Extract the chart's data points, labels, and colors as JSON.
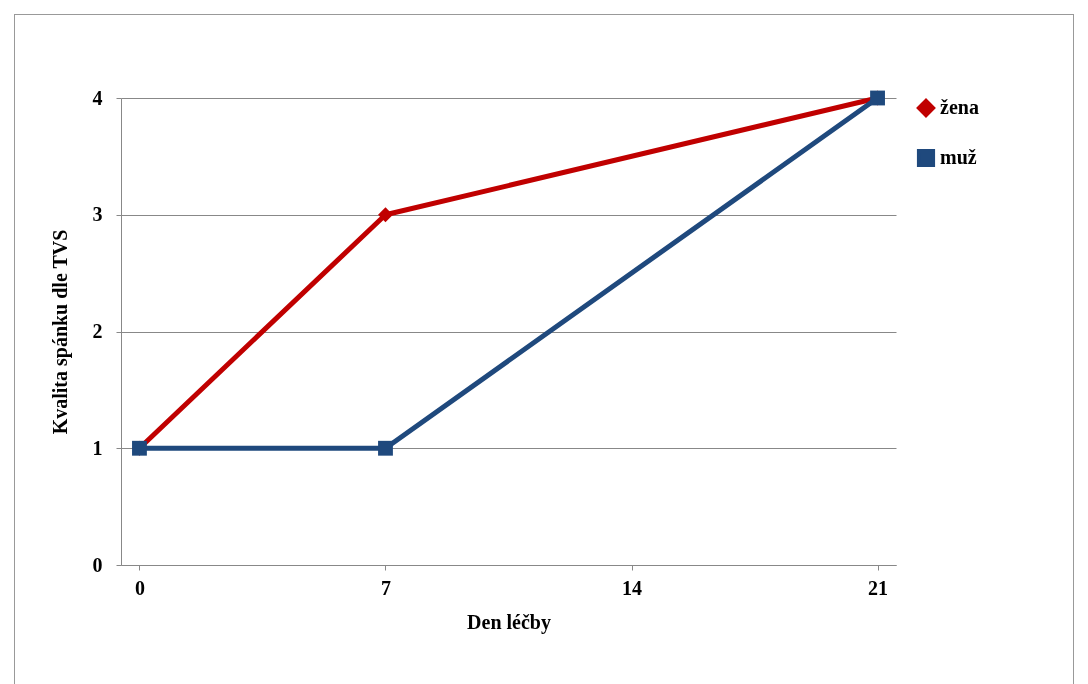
{
  "chart_data": {
    "type": "line",
    "xlabel": "Den léčby",
    "ylabel": "Kvalita spánku dle TVS",
    "categories": [
      "0",
      "7",
      "14",
      "21"
    ],
    "series": [
      {
        "name": "žena",
        "color": "#c00000",
        "marker": "diamond",
        "values": [
          1,
          3,
          null,
          4
        ]
      },
      {
        "name": "muž",
        "color": "#1f497d",
        "marker": "square",
        "values": [
          1,
          1,
          null,
          4
        ]
      }
    ],
    "ylim": [
      0,
      4
    ],
    "yticks": [
      0,
      1,
      2,
      3,
      4
    ],
    "grid": "y",
    "legend": "right",
    "line_style": "solid"
  }
}
